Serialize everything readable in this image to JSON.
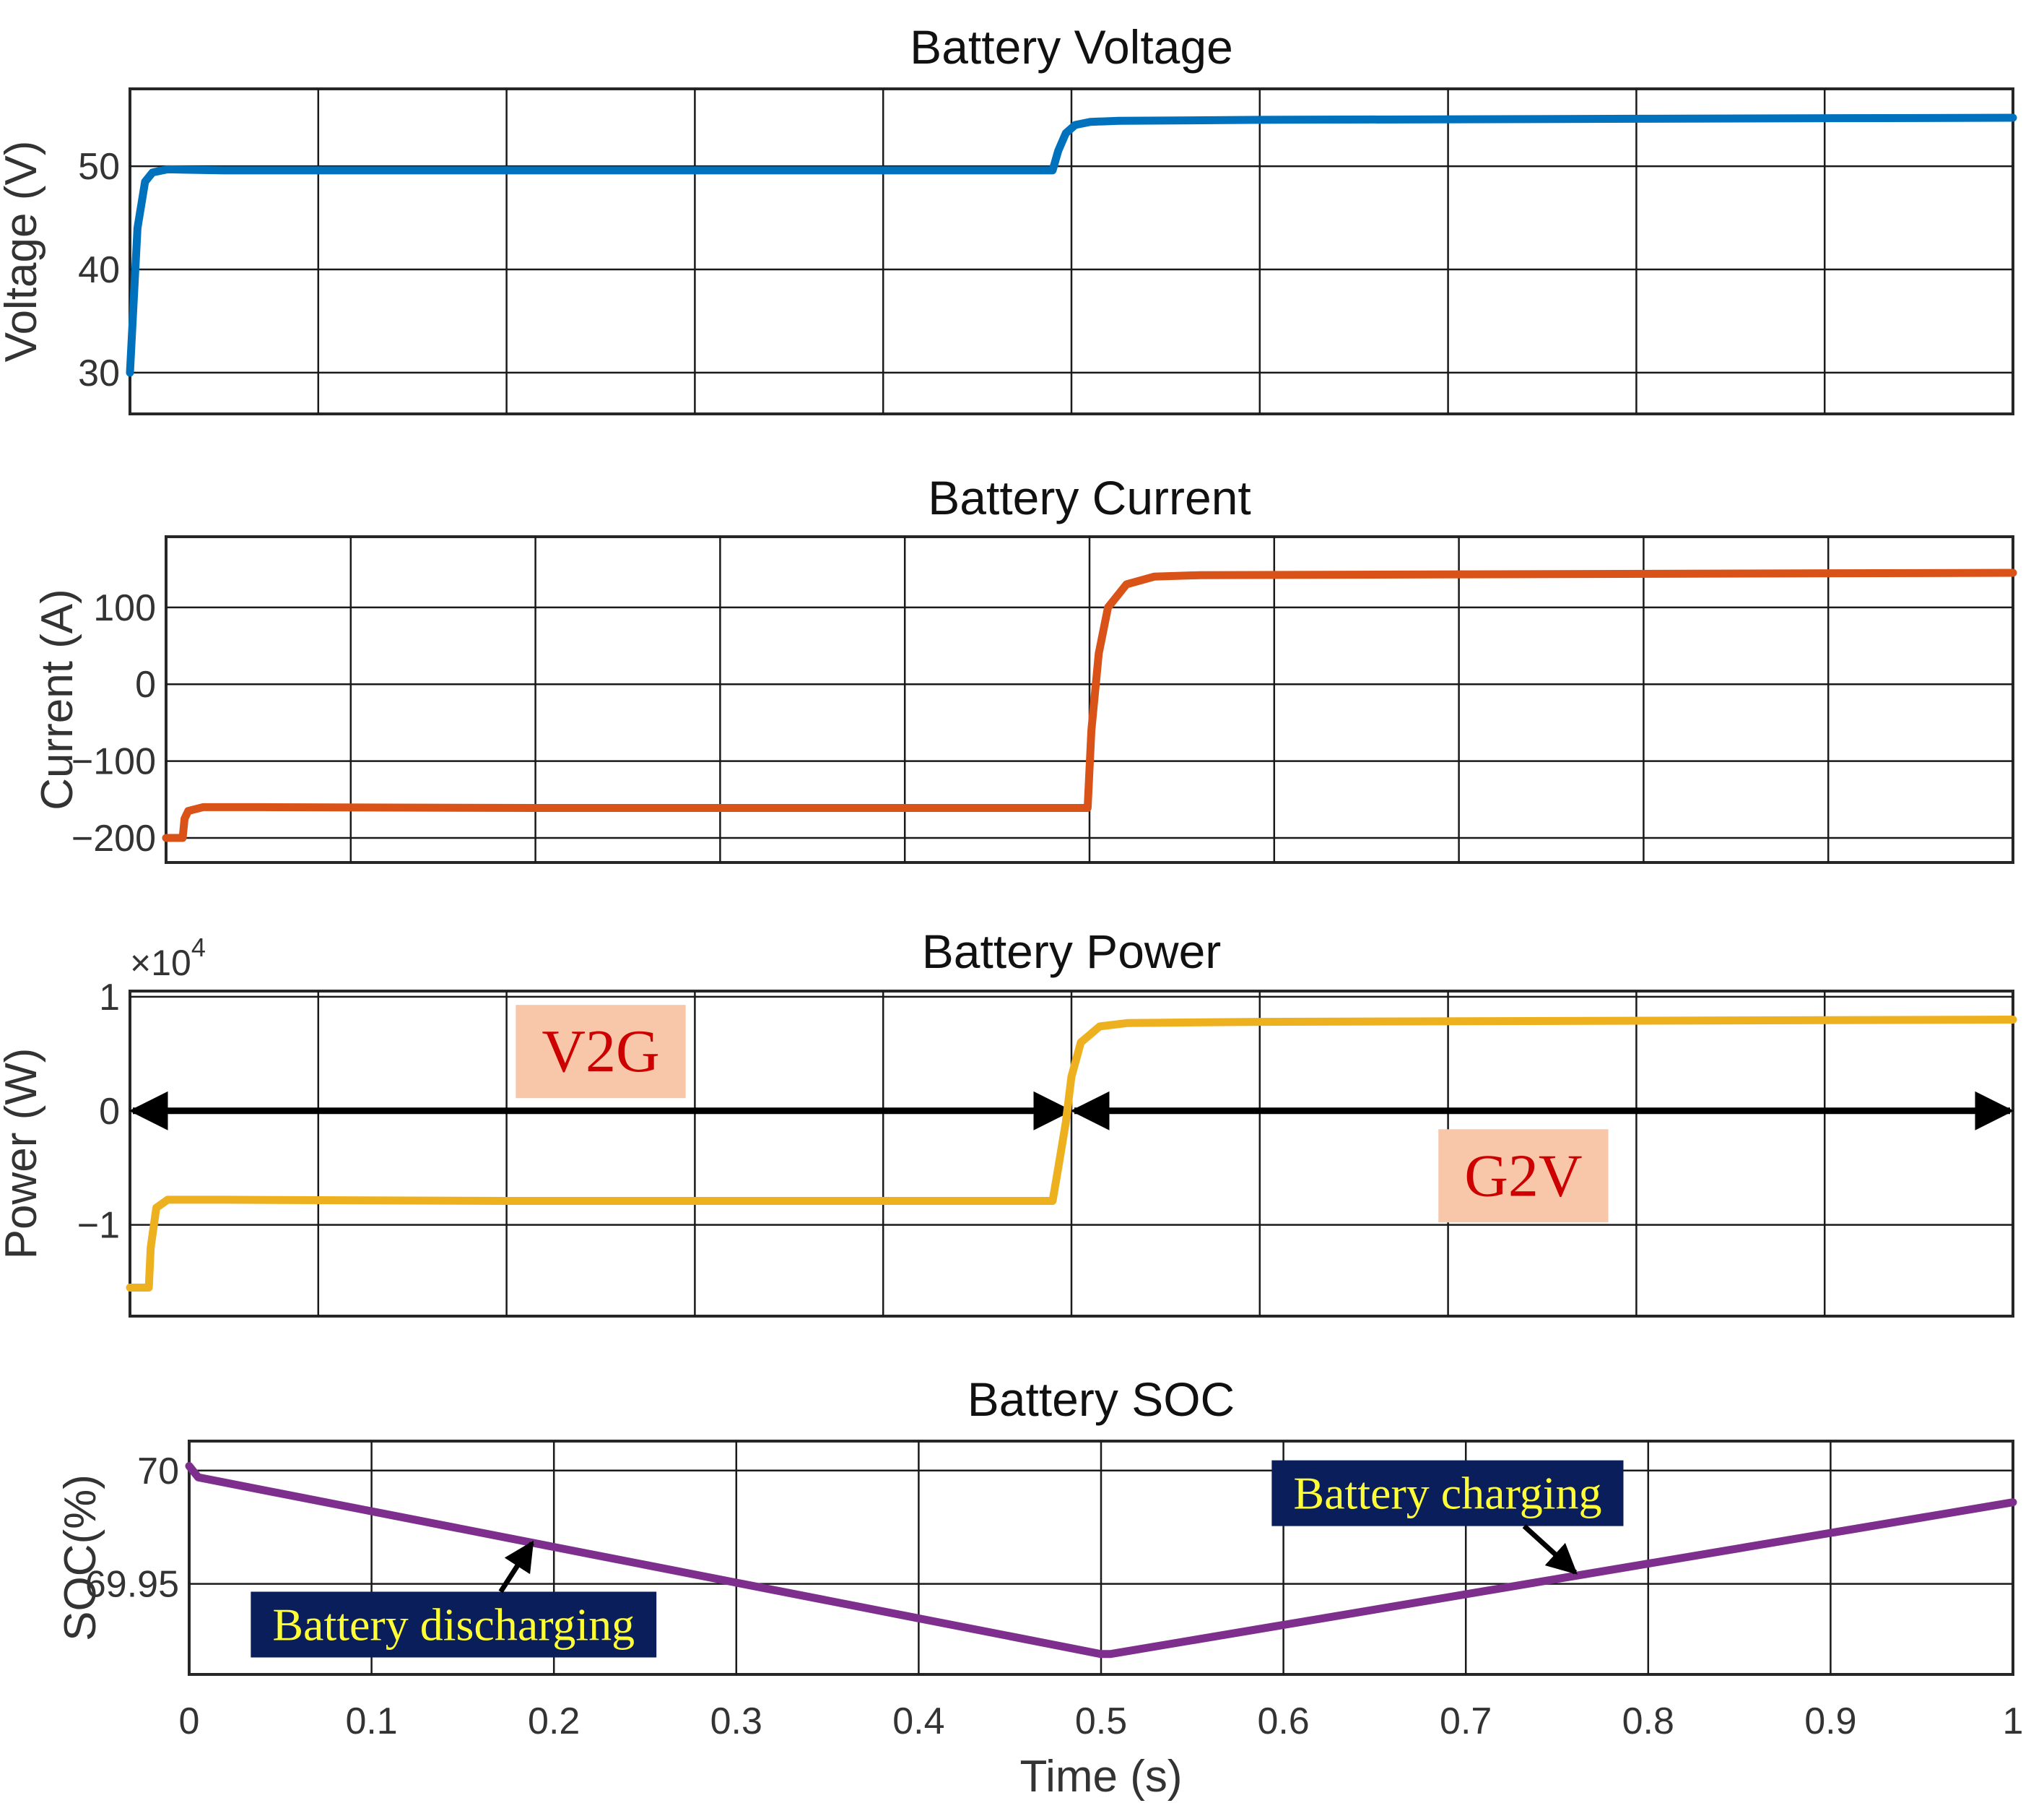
{
  "chart_data": [
    {
      "type": "line",
      "title": "Battery Voltage",
      "xlabel": "",
      "ylabel": "Voltage (V)",
      "xlim": [
        0,
        1
      ],
      "ylim": [
        26,
        57.5
      ],
      "xticks": [
        0,
        0.1,
        0.2,
        0.3,
        0.4,
        0.5,
        0.6,
        0.7,
        0.8,
        0.9,
        1
      ],
      "yticks": [
        30,
        40,
        50
      ],
      "ytick_labels": [
        "30",
        "40",
        "50"
      ],
      "show_xtick_labels": false,
      "grid": true,
      "color": "#0072BD",
      "x": [
        0,
        0.004,
        0.008,
        0.012,
        0.02,
        0.05,
        0.2,
        0.4,
        0.49,
        0.493,
        0.497,
        0.502,
        0.51,
        0.525,
        0.6,
        0.8,
        1
      ],
      "y": [
        30,
        44,
        48.5,
        49.4,
        49.7,
        49.6,
        49.6,
        49.6,
        49.6,
        51.5,
        53.2,
        54.0,
        54.3,
        54.4,
        54.5,
        54.6,
        54.7
      ]
    },
    {
      "type": "line",
      "title": "Battery Current",
      "xlabel": "",
      "ylabel": "Current (A)",
      "xlim": [
        0,
        1
      ],
      "ylim": [
        -232,
        192
      ],
      "xticks": [
        0,
        0.1,
        0.2,
        0.3,
        0.4,
        0.5,
        0.6,
        0.7,
        0.8,
        0.9,
        1
      ],
      "yticks": [
        -200,
        -100,
        0,
        100
      ],
      "ytick_labels": [
        "−200",
        "−100",
        "0",
        "100"
      ],
      "show_xtick_labels": false,
      "grid": true,
      "color": "#D95319",
      "x": [
        0,
        0.009,
        0.01,
        0.012,
        0.02,
        0.05,
        0.2,
        0.4,
        0.499,
        0.501,
        0.505,
        0.51,
        0.52,
        0.535,
        0.56,
        0.7,
        1
      ],
      "y": [
        -200,
        -200,
        -175,
        -165,
        -160,
        -160,
        -161,
        -161,
        -161,
        -60,
        40,
        100,
        130,
        140,
        142,
        143,
        145
      ]
    },
    {
      "type": "line",
      "title": "Battery Power",
      "xlabel": "",
      "ylabel": "Power (W)",
      "exponent_label": "×10",
      "exponent_power": "4",
      "xlim": [
        0,
        1
      ],
      "ylim": [
        -1.8,
        1.05
      ],
      "xticks": [
        0,
        0.1,
        0.2,
        0.3,
        0.4,
        0.5,
        0.6,
        0.7,
        0.8,
        0.9,
        1
      ],
      "yticks": [
        -1,
        0,
        1
      ],
      "ytick_labels": [
        "−1",
        "0",
        "1"
      ],
      "show_xtick_labels": false,
      "grid": true,
      "color": "#EDB120",
      "x": [
        0,
        0.01,
        0.011,
        0.014,
        0.02,
        0.05,
        0.2,
        0.4,
        0.49,
        0.493,
        0.497,
        0.5,
        0.505,
        0.515,
        0.53,
        0.6,
        1
      ],
      "y": [
        -1.55,
        -1.55,
        -1.2,
        -0.85,
        -0.78,
        -0.78,
        -0.79,
        -0.79,
        -0.79,
        -0.5,
        -0.1,
        0.3,
        0.6,
        0.74,
        0.77,
        0.78,
        0.8
      ],
      "annotations": [
        {
          "text": "V2G",
          "x": 0.25,
          "y": 0.52,
          "text_color": "#CC0000",
          "box_color": "#F8C6A9"
        },
        {
          "text": "G2V",
          "x": 0.74,
          "y": -0.57,
          "text_color": "#CC0000",
          "box_color": "#F8C6A9"
        }
      ],
      "arrows": [
        {
          "from": 0,
          "to": 0.5,
          "y": 0
        },
        {
          "from": 0.5,
          "to": 1,
          "y": 0
        }
      ]
    },
    {
      "type": "line",
      "title": "Battery SOC",
      "xlabel": "Time (s)",
      "ylabel": "SOC(%)",
      "xlim": [
        0,
        1
      ],
      "ylim": [
        69.91,
        70.013
      ],
      "xticks": [
        0,
        0.1,
        0.2,
        0.3,
        0.4,
        0.5,
        0.6,
        0.7,
        0.8,
        0.9,
        1
      ],
      "xtick_labels": [
        "0",
        "0.1",
        "0.2",
        "0.3",
        "0.4",
        "0.5",
        "0.6",
        "0.7",
        "0.8",
        "0.9",
        "1"
      ],
      "yticks": [
        69.95,
        70
      ],
      "ytick_labels": [
        "69.95",
        "70"
      ],
      "show_xtick_labels": true,
      "grid": true,
      "color": "#7E2F8E",
      "x": [
        0,
        0.005,
        0.5,
        0.505,
        1
      ],
      "y": [
        70.002,
        69.997,
        69.919,
        69.919,
        69.986
      ],
      "annotations": [
        {
          "text": "Battery discharging",
          "x": 0.145,
          "y": 69.932,
          "text_color": "#FFFF33",
          "box_color": "#0A1E5C",
          "arrow_to": [
            0.188,
            69.968
          ]
        },
        {
          "text": "Battery charging",
          "x": 0.69,
          "y": 69.99,
          "text_color": "#FFFF33",
          "box_color": "#0A1E5C",
          "arrow_to": [
            0.76,
            69.955
          ]
        }
      ]
    }
  ]
}
